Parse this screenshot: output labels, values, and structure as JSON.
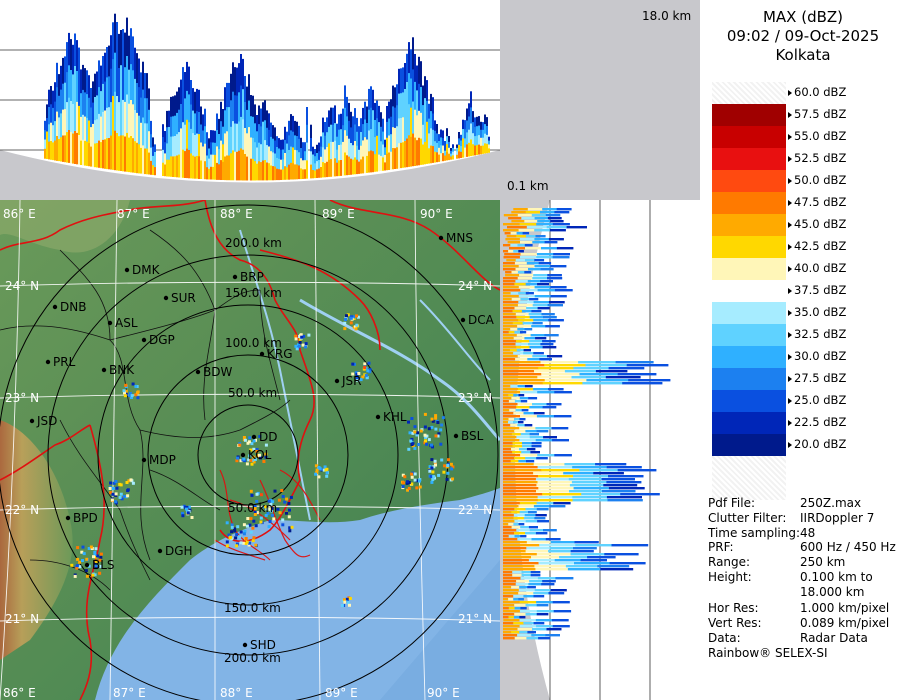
{
  "header": {
    "product": "MAX (dBZ)",
    "datetime": "09:02 / 09-Oct-2025",
    "station": "Kolkata",
    "height_top": "18.0 km",
    "height_bottom": "0.1 km"
  },
  "legend": {
    "levels": [
      {
        "label": "60.0 dBZ",
        "color": ""
      },
      {
        "label": "57.5 dBZ",
        "color": "#a00000"
      },
      {
        "label": "55.0 dBZ",
        "color": "#c80000"
      },
      {
        "label": "52.5 dBZ",
        "color": "#e81010"
      },
      {
        "label": "50.0 dBZ",
        "color": "#ff4a10"
      },
      {
        "label": "47.5 dBZ",
        "color": "#ff7a00"
      },
      {
        "label": "45.0 dBZ",
        "color": "#ffaa00"
      },
      {
        "label": "42.5 dBZ",
        "color": "#ffd800"
      },
      {
        "label": "40.0 dBZ",
        "color": "#fff6b8"
      },
      {
        "label": "37.5 dBZ",
        "color": "#ffffff"
      },
      {
        "label": "35.0 dBZ",
        "color": "#a6ecff"
      },
      {
        "label": "32.5 dBZ",
        "color": "#5fd2ff"
      },
      {
        "label": "30.0 dBZ",
        "color": "#2fb0ff"
      },
      {
        "label": "27.5 dBZ",
        "color": "#1c80f0"
      },
      {
        "label": "25.0 dBZ",
        "color": "#0a50e0"
      },
      {
        "label": "22.5 dBZ",
        "color": "#0026b8"
      },
      {
        "label": "20.0 dBZ",
        "color": "#001a8c"
      }
    ]
  },
  "metadata": [
    {
      "key": "Pdf File:",
      "value": "250Z.max"
    },
    {
      "key": "Clutter Filter:",
      "value": "IIRDoppler 7"
    },
    {
      "key": "Time sampling:",
      "value": "48"
    },
    {
      "key": "PRF:",
      "value": "600 Hz / 450 Hz"
    },
    {
      "key": "Range:",
      "value": "250 km"
    },
    {
      "key": "Height:",
      "value": "0.100 km to"
    },
    {
      "key": "",
      "value": "18.000 km"
    },
    {
      "key": "Hor Res:",
      "value": "1.000 km/pixel"
    },
    {
      "key": "Vert Res:",
      "value": "0.089 km/pixel"
    },
    {
      "key": "Data:",
      "value": "Radar Data"
    }
  ],
  "footer": "Rainbow® SELEX-SI",
  "map": {
    "lon_labels": [
      "86° E",
      "87° E",
      "88° E",
      "89° E",
      "90° E"
    ],
    "lat_labels": [
      "24° N",
      "23° N",
      "22° N",
      "21° N"
    ],
    "range_rings": [
      "50.0 km",
      "100.0 km",
      "150.0 km",
      "200.0 km"
    ],
    "cities": [
      "MNS",
      "DMK",
      "BRP",
      "SUR",
      "DNB",
      "ASL",
      "DGP",
      "DCA",
      "KRG",
      "PRL",
      "BNK",
      "BDW",
      "JSR",
      "KHL",
      "JSD",
      "DD",
      "BSL",
      "MDP",
      "KOL",
      "BPD",
      "DGH",
      "BLS",
      "SHD"
    ]
  },
  "colors": {
    "land_green": "#5e8f56",
    "sea_blue": "#7fb1e3",
    "gray_bg": "#c8c8cc",
    "border_red": "#e01010"
  }
}
